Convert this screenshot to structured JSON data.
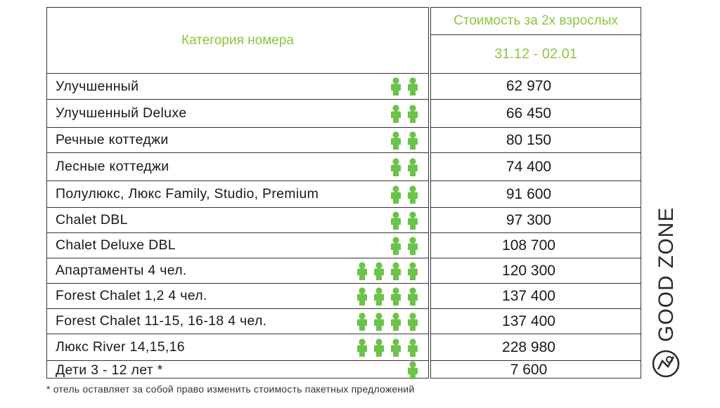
{
  "header": {
    "category_label": "Категория номера",
    "cost_label": "Стоимость за 2х взрослых",
    "date_range": "31.12 - 02.01"
  },
  "rows": [
    {
      "name": "Улучшенный",
      "people": 2,
      "price": "62 970"
    },
    {
      "name": "Улучшенный Deluxe",
      "people": 2,
      "price": "66 450"
    },
    {
      "name": "Речные коттеджи",
      "people": 2,
      "price": "80 150"
    },
    {
      "name": "Лесные коттеджи",
      "people": 2,
      "price": "74 400"
    },
    {
      "name": "Полулюкс, Люкс Family, Studio, Premium",
      "people": 2,
      "price": "91 600"
    },
    {
      "name": "Chalet DBL",
      "people": 2,
      "price": "97 300"
    },
    {
      "name": "Chalet Deluxe DBL",
      "people": 2,
      "price": "108 700"
    },
    {
      "name": "Апартаменты 4 чел.",
      "people": 4,
      "price": "120 300"
    },
    {
      "name": "Forest Chalet 1,2  4 чел.",
      "people": 4,
      "price": "137 400"
    },
    {
      "name": "Forest Chalet 11-15, 16-18 4 чел.",
      "people": 4,
      "price": "137 400"
    },
    {
      "name": "Люкс River 14,15,16",
      "people": 4,
      "price": "228 980"
    },
    {
      "name": "Дети  3 - 12 лет *",
      "people": 1,
      "price": "7 600"
    }
  ],
  "footnote": "* отель оставляет за собой право изменить стоимость пакетных предложений",
  "brand": {
    "name": "GOOD ZONE",
    "icon": "good-zone-logo-icon"
  },
  "colors": {
    "accent": "#8cc63f",
    "person": "#6cc24a",
    "border": "#333333"
  }
}
